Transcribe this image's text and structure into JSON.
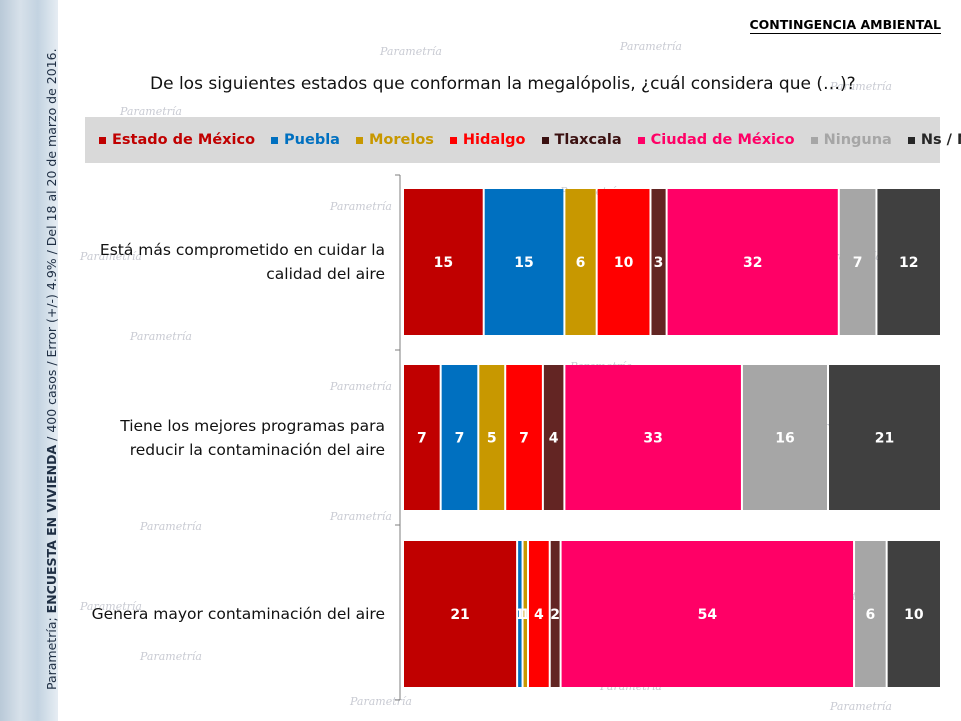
{
  "header": {
    "tag": "CONTINGENCIA AMBIENTAL"
  },
  "sidebar": {
    "prefix": "Parametría; ",
    "bold": "ENCUESTA EN VIVIENDA",
    "rest": " / 400 casos / Error (+/-) 4.9% / Del 18 al 20 de marzo de 2016."
  },
  "watermark": "Parametría",
  "chart_data": {
    "type": "bar",
    "orientation": "horizontal",
    "stacked": true,
    "title": "De los siguientes estados que conforman la megalópolis, ¿cuál considera que (…)?",
    "categories": [
      "Está más comprometido en cuidar la calidad del aire",
      "Tiene los mejores programas para reducir la contaminación del aire",
      "Genera mayor contaminación del aire"
    ],
    "legend_position": "top",
    "series": [
      {
        "name": "Estado de México",
        "color": "#c00000",
        "legend_color": "#c00000",
        "values": [
          15,
          7,
          21
        ]
      },
      {
        "name": "Puebla",
        "color": "#0070c0",
        "legend_color": "#0070c0",
        "values": [
          15,
          7,
          1
        ]
      },
      {
        "name": "Morelos",
        "color": "#c89800",
        "legend_color": "#c89800",
        "values": [
          6,
          5,
          1
        ]
      },
      {
        "name": "Hidalgo",
        "color": "#ff0000",
        "legend_color": "#ff0000",
        "values": [
          10,
          7,
          4
        ]
      },
      {
        "name": "Tlaxcala",
        "color": "#632523",
        "legend_color": "#3a1010",
        "values": [
          3,
          4,
          2
        ]
      },
      {
        "name": "Ciudad de México",
        "color": "#ff0066",
        "legend_color": "#ff0066",
        "values": [
          32,
          33,
          54
        ]
      },
      {
        "name": "Ninguna",
        "color": "#a6a6a6",
        "legend_color": "#a6a6a6",
        "values": [
          7,
          16,
          6
        ]
      },
      {
        "name": "Ns / Nc",
        "color": "#404040",
        "legend_color": "#262626",
        "values": [
          12,
          21,
          10
        ]
      }
    ],
    "data_labels": [
      [
        "15",
        "15",
        "6",
        "10",
        "3",
        "32",
        "7",
        "12"
      ],
      [
        "7",
        "7",
        "5",
        "7",
        "4",
        "33",
        "16",
        "21"
      ],
      [
        "21",
        "1",
        "1",
        "4",
        "2",
        "54",
        "6",
        "10"
      ]
    ]
  }
}
